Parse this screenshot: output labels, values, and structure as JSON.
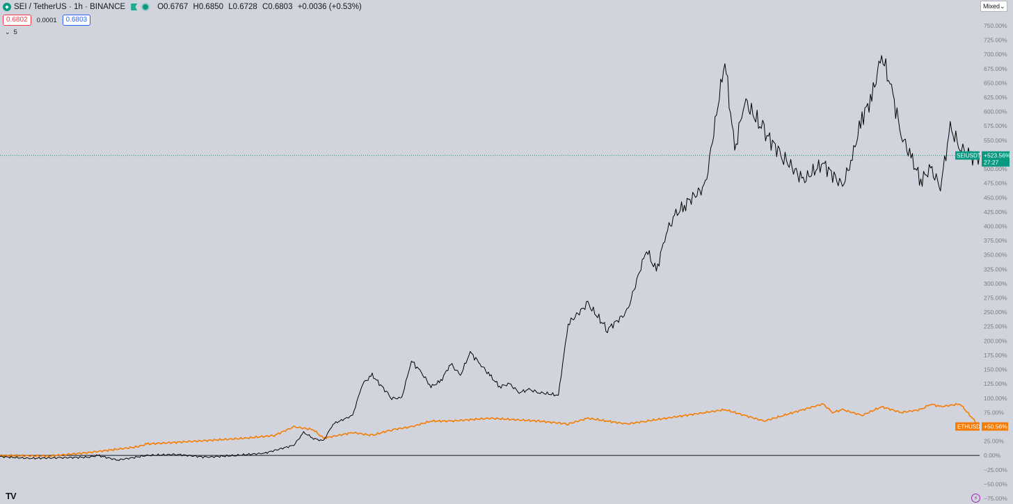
{
  "header": {
    "symbol": "SEI / TetherUS · 1h · BINANCE",
    "open": "O0.6767",
    "high": "H0.6850",
    "low": "L0.6728",
    "close": "C0.6803",
    "change": "+0.0036 (+0.53%)"
  },
  "quote": {
    "sell": "0.6802",
    "spread": "0.0001",
    "buy": "0.6803"
  },
  "indicators_toggle": {
    "count": "5"
  },
  "scale_mode": {
    "label": "Mixed"
  },
  "colors": {
    "background": "#d1d4dc",
    "sei": "#000000",
    "eth": "#f57c00",
    "sei_badge": "#089981",
    "eth_badge": "#f57c00"
  },
  "icons": [
    "sei-logo-icon",
    "flag-icon",
    "live-dot-icon",
    "chevron-down-icon",
    "tradingview-logo-icon",
    "lightning-icon"
  ],
  "chart_data": {
    "type": "line",
    "ylim": [
      -75,
      750
    ],
    "y_ticks": [
      750,
      725,
      700,
      675,
      650,
      625,
      600,
      575,
      550,
      525,
      500,
      475,
      450,
      425,
      400,
      375,
      350,
      325,
      300,
      275,
      250,
      225,
      200,
      175,
      150,
      125,
      100,
      75,
      50,
      25,
      0,
      -25,
      -50,
      -75
    ],
    "y_tick_labels": [
      "750.00%",
      "725.00%",
      "700.00%",
      "675.00%",
      "650.00%",
      "625.00%",
      "600.00%",
      "575.00%",
      "550.00%",
      "525.00%",
      "500.00%",
      "475.00%",
      "450.00%",
      "425.00%",
      "400.00%",
      "375.00%",
      "350.00%",
      "325.00%",
      "300.00%",
      "275.00%",
      "250.00%",
      "225.00%",
      "200.00%",
      "175.00%",
      "150.00%",
      "125.00%",
      "100.00%",
      "75.00%",
      "50.00%",
      "25.00%",
      "0.00%",
      "−25.00%",
      "−50.00%",
      "−75.00%"
    ],
    "last_value_line": 523.56,
    "series": [
      {
        "name": "SEIUSDT",
        "badge": "+523.56%",
        "countdown": "27:27",
        "x": [
          0,
          3,
          6,
          9,
          10,
          12,
          15,
          18,
          21,
          24,
          27,
          30,
          31,
          32,
          33,
          34,
          36,
          37,
          38,
          40,
          41,
          42,
          43,
          44,
          45,
          46,
          47,
          48,
          49,
          50,
          51,
          52,
          53,
          54,
          55,
          57,
          58,
          60,
          62,
          64,
          66,
          67,
          68,
          69,
          70,
          72,
          74,
          75,
          76,
          78,
          80,
          82,
          84,
          86,
          87,
          88,
          89,
          90,
          91,
          92,
          93,
          94,
          95,
          96,
          97,
          98,
          99,
          100
        ],
        "values": [
          -2,
          -5,
          -4,
          -3,
          0,
          -8,
          0,
          2,
          -3,
          0,
          4,
          18,
          40,
          30,
          25,
          55,
          70,
          125,
          140,
          100,
          100,
          165,
          145,
          120,
          130,
          160,
          140,
          180,
          160,
          140,
          120,
          125,
          110,
          115,
          110,
          105,
          230,
          265,
          220,
          250,
          360,
          320,
          390,
          420,
          440,
          470,
          690,
          530,
          620,
          565,
          520,
          480,
          510,
          470,
          520,
          590,
          625,
          700,
          640,
          560,
          520,
          480,
          500,
          470,
          570,
          540,
          520,
          523.56
        ]
      },
      {
        "name": "ETHUSD",
        "badge": "+50.56%",
        "x": [
          0,
          5,
          9,
          14,
          15,
          20,
          25,
          28,
          30,
          32,
          33,
          36,
          38,
          40,
          42,
          44,
          46,
          50,
          55,
          58,
          60,
          62,
          64,
          66,
          70,
          72,
          74,
          76,
          78,
          80,
          82,
          84,
          85,
          86,
          88,
          90,
          92,
          94,
          95,
          96,
          98,
          100
        ],
        "values": [
          0,
          -1,
          5,
          15,
          20,
          25,
          30,
          35,
          50,
          45,
          30,
          40,
          35,
          45,
          50,
          60,
          60,
          65,
          60,
          55,
          65,
          60,
          55,
          60,
          70,
          75,
          80,
          70,
          60,
          70,
          80,
          90,
          75,
          80,
          70,
          85,
          75,
          80,
          90,
          85,
          90,
          50.56
        ]
      }
    ]
  }
}
